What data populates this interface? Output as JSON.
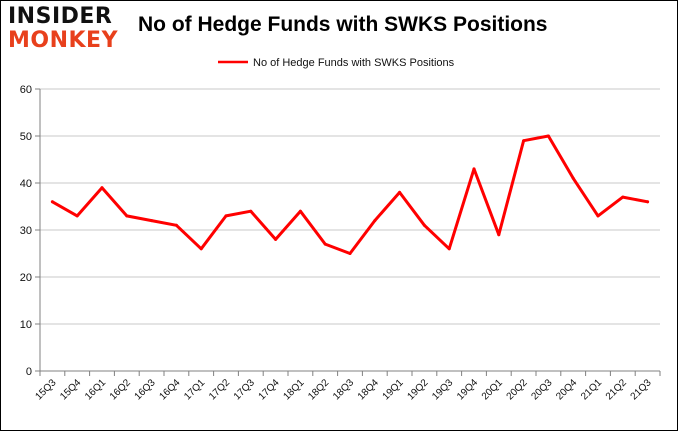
{
  "brand": {
    "line1": "INSIDER",
    "line2": "MONKEY"
  },
  "chart_data": {
    "type": "line",
    "title": "No of Hedge Funds with SWKS Positions",
    "xlabel": "",
    "ylabel": "",
    "categories": [
      "15Q3",
      "15Q4",
      "16Q1",
      "16Q2",
      "16Q3",
      "16Q4",
      "17Q1",
      "17Q2",
      "17Q3",
      "17Q4",
      "18Q1",
      "18Q2",
      "18Q3",
      "18Q4",
      "19Q1",
      "19Q2",
      "19Q3",
      "19Q4",
      "20Q1",
      "20Q2",
      "20Q3",
      "20Q4",
      "21Q1",
      "21Q2",
      "21Q3"
    ],
    "series": [
      {
        "name": "No of Hedge Funds with SWKS Positions",
        "color": "#ff0000",
        "values": [
          36,
          33,
          39,
          33,
          32,
          31,
          26,
          33,
          34,
          28,
          34,
          27,
          25,
          32,
          38,
          31,
          26,
          43,
          29,
          49,
          50,
          41,
          33,
          37,
          36
        ]
      }
    ],
    "ylim": [
      0,
      60
    ],
    "yticks": [
      0,
      10,
      20,
      30,
      40,
      50,
      60
    ],
    "grid": true,
    "legend_position": "top-center"
  }
}
